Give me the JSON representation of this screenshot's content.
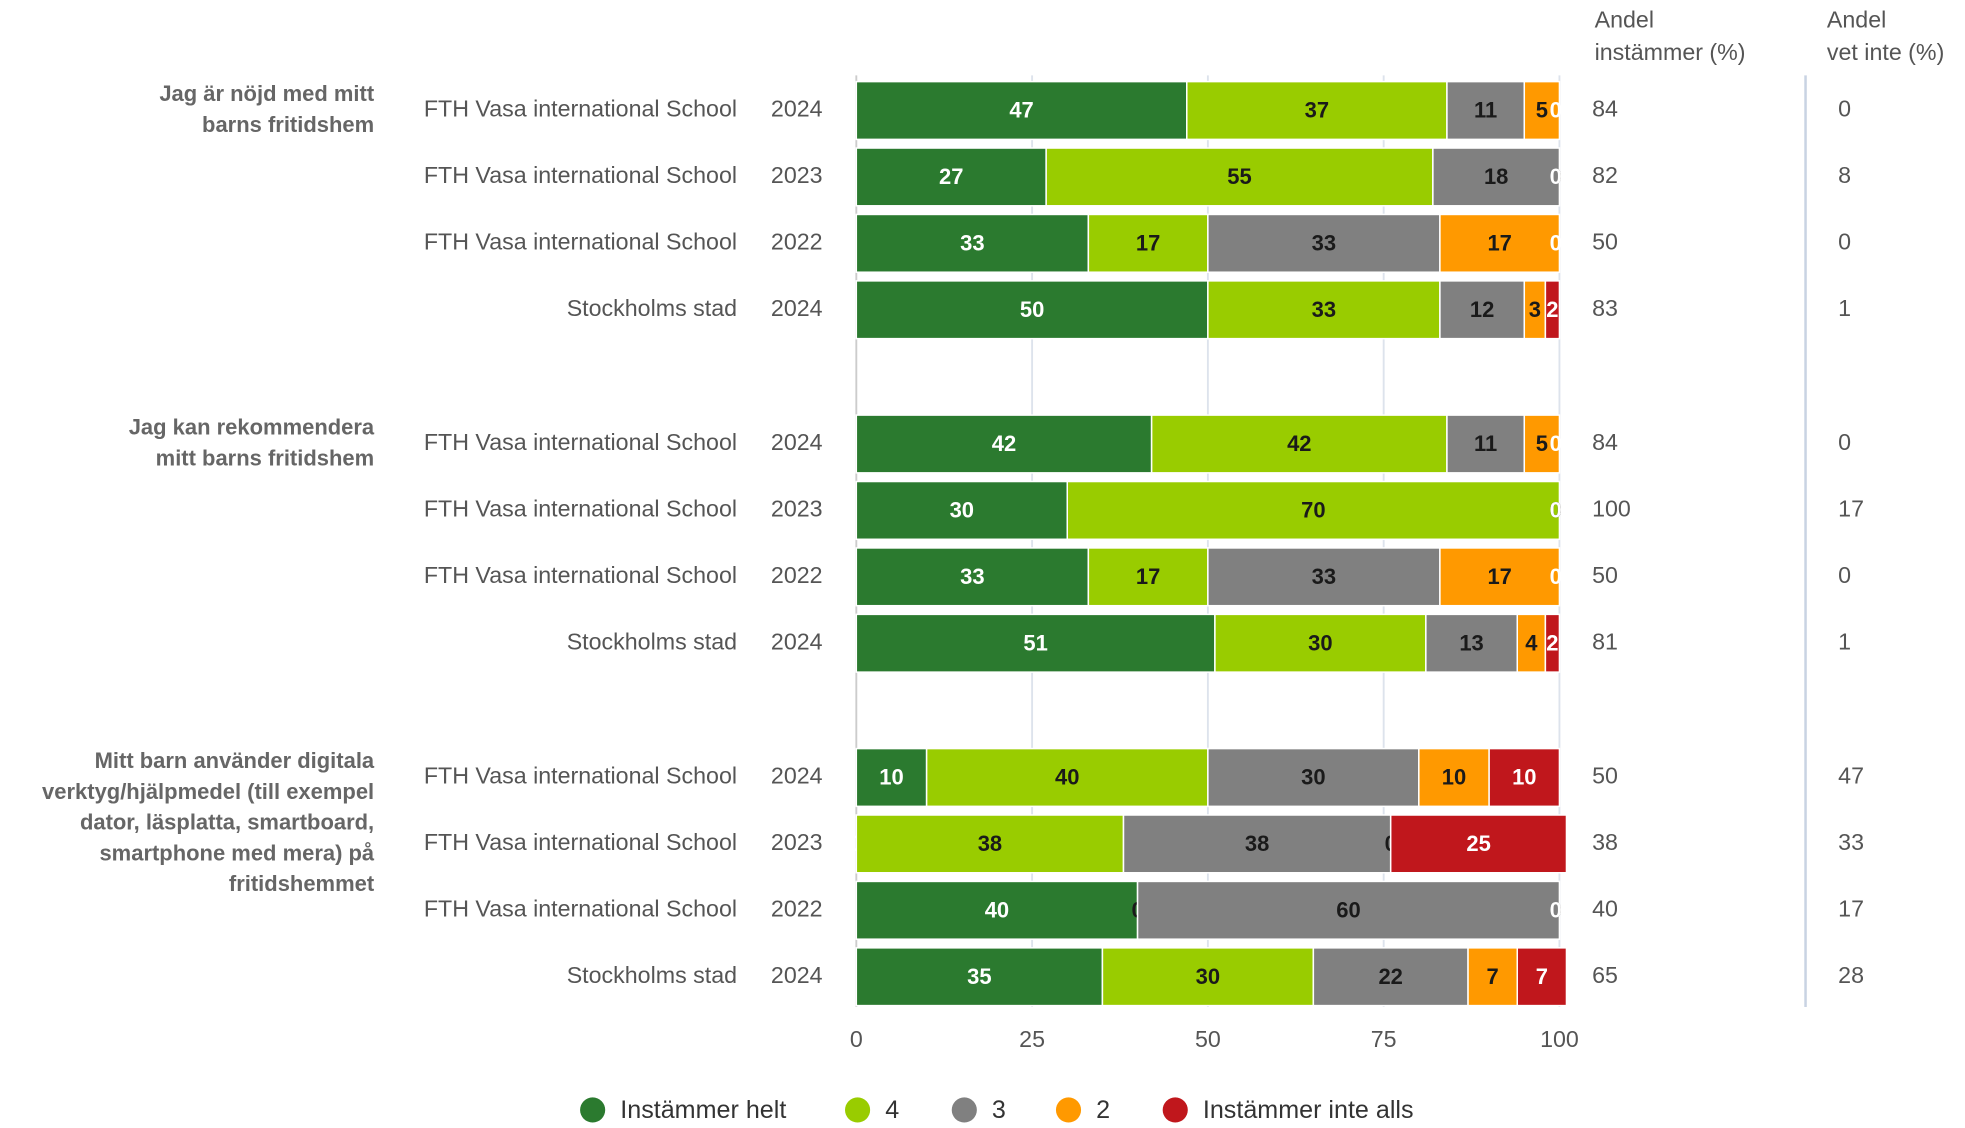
{
  "chart_data": {
    "type": "stacked_bar_h",
    "questions": [
      [
        "Jag är nöjd med mitt",
        "barns fritidshem"
      ],
      [
        "Jag kan rekommendera",
        "mitt barns fritidshem"
      ],
      [
        "Mitt barn använder digitala",
        "verktyg/hjälpmedel (till exempel",
        "dator, läsplatta, smartboard,",
        "smartphone med mera) på",
        "fritidshemmet"
      ]
    ],
    "categories": [
      "FTH Vasa international School",
      "FTH Vasa international School",
      "FTH Vasa international School",
      "Stockholms stad",
      "FTH Vasa international School",
      "FTH Vasa international School",
      "FTH Vasa international School",
      "Stockholms stad",
      "FTH Vasa international School",
      "FTH Vasa international School",
      "FTH Vasa international School",
      "Stockholms stad"
    ],
    "years": [
      "2024",
      "2023",
      "2022",
      "2024",
      "2024",
      "2023",
      "2022",
      "2024",
      "2024",
      "2023",
      "2022",
      "2024"
    ],
    "series": [
      {
        "name": "Instämmer helt",
        "color": "#2b7a2f",
        "label_color": "#ffffff",
        "values": [
          47,
          27,
          33,
          50,
          42,
          30,
          33,
          51,
          10,
          0,
          40,
          35
        ]
      },
      {
        "name": "4",
        "color": "#99cc00",
        "label_color": "#1a1a1a",
        "values": [
          37,
          55,
          17,
          33,
          42,
          70,
          17,
          30,
          40,
          38,
          0,
          30
        ]
      },
      {
        "name": "3",
        "color": "#808080",
        "label_color": "#1a1a1a",
        "values": [
          11,
          18,
          33,
          12,
          11,
          0,
          33,
          13,
          30,
          38,
          60,
          22
        ]
      },
      {
        "name": "2",
        "color": "#ff9900",
        "label_color": "#1a1a1a",
        "values": [
          5,
          0,
          17,
          3,
          5,
          0,
          17,
          4,
          10,
          0,
          0,
          7
        ]
      },
      {
        "name": "Instämmer inte alls",
        "color": "#c0171c",
        "label_color": "#ffffff",
        "values": [
          0,
          0,
          0,
          2,
          0,
          0,
          0,
          2,
          10,
          25,
          0,
          7
        ]
      }
    ],
    "columns": [
      {
        "title": [
          "Andel",
          "instämmer (%)"
        ],
        "values": [
          84,
          82,
          50,
          83,
          84,
          100,
          50,
          81,
          50,
          38,
          40,
          65
        ]
      },
      {
        "title": [
          "Andel",
          "vet inte (%)"
        ],
        "values": [
          0,
          8,
          0,
          1,
          0,
          17,
          0,
          1,
          47,
          33,
          17,
          28
        ]
      }
    ],
    "xlim": [
      0,
      100
    ],
    "xticks": [
      0,
      25,
      50,
      75,
      100
    ],
    "grid": true
  }
}
